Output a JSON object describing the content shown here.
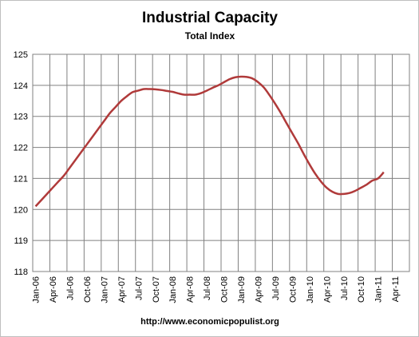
{
  "chart_data": {
    "type": "line",
    "title": "Industrial Capacity",
    "subtitle": "Total Index",
    "xlabel": "",
    "ylabel": "",
    "ylim": [
      118,
      125
    ],
    "yticks": [
      118,
      119,
      120,
      121,
      122,
      123,
      124,
      125
    ],
    "grid": true,
    "legend": "none",
    "source": "http://www.economicpopulist.org",
    "line_color": "#b03a3a",
    "x_tick_labels": [
      "Jan-06",
      "Apr-06",
      "Jul-06",
      "Oct-06",
      "Jan-07",
      "Apr-07",
      "Jul-07",
      "Oct-07",
      "Jan-08",
      "Apr-08",
      "Jul-08",
      "Oct-08",
      "Jan-09",
      "Apr-09",
      "Jul-09",
      "Oct-09",
      "Jan-10",
      "Apr-10",
      "Jul-10",
      "Oct-10",
      "Jan-11",
      "Apr-11"
    ],
    "series": [
      {
        "values": [
          120.1,
          120.3,
          120.5,
          120.7,
          120.9,
          121.1,
          121.35,
          121.6,
          121.85,
          122.1,
          122.35,
          122.6,
          122.85,
          123.1,
          123.3,
          123.5,
          123.65,
          123.78,
          123.83,
          123.88,
          123.88,
          123.87,
          123.85,
          123.82,
          123.79,
          123.74,
          123.7,
          123.7,
          123.7,
          123.75,
          123.83,
          123.92,
          124.0,
          124.1,
          124.2,
          124.26,
          124.28,
          124.27,
          124.22,
          124.1,
          123.93,
          123.68,
          123.4,
          123.1,
          122.77,
          122.45,
          122.13,
          121.78,
          121.45,
          121.15,
          120.9,
          120.7,
          120.57,
          120.5,
          120.5,
          120.53,
          120.6,
          120.7,
          120.8,
          120.93,
          121.0,
          121.2
        ]
      }
    ]
  }
}
